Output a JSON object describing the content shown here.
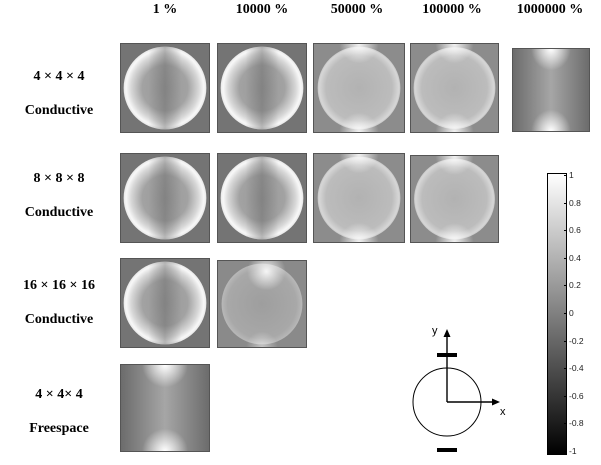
{
  "columns": [
    "1 %",
    "10000 %",
    "50000 %",
    "100000 %",
    "1000000 %"
  ],
  "rows": [
    {
      "size": "4 × 4 × 4",
      "type": "Conductive",
      "tile_styles": [
        "ring",
        "ring",
        "disk",
        "disk",
        "poles"
      ]
    },
    {
      "size": "8 × 8 × 8",
      "type": "Conductive",
      "tile_styles": [
        "ring",
        "ring",
        "disk",
        "disk"
      ]
    },
    {
      "size": "16 × 16 × 16",
      "type": "Conductive",
      "tile_styles": [
        "ring",
        "disk-top"
      ]
    },
    {
      "size": "4 × 4× 4",
      "type": "Freespace",
      "tile_styles": [
        "poles"
      ]
    }
  ],
  "colorbar": {
    "ticks": [
      "1",
      "0.8",
      "0.6",
      "0.4",
      "0.2",
      "0",
      "-0.2",
      "-0.4",
      "-0.6",
      "-0.8",
      "-1"
    ],
    "max_color": "#ffffff",
    "min_color": "#000000"
  },
  "axes_diagram": {
    "y_label": "y",
    "x_label": "x"
  }
}
